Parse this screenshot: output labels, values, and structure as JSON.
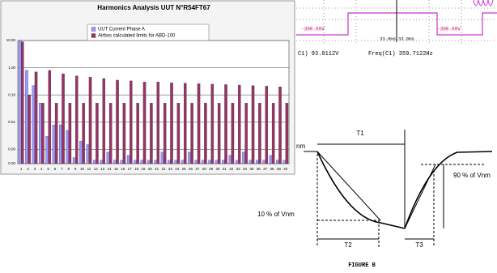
{
  "chart_data": {
    "type": "bar",
    "title": "Harmonics Analysis UUT N°R54FT67",
    "categories": [
      "1",
      "2",
      "3",
      "4",
      "5",
      "6",
      "7",
      "8",
      "9",
      "10",
      "11",
      "12",
      "13",
      "14",
      "15",
      "16",
      "17",
      "18",
      "19",
      "20",
      "21",
      "22",
      "23",
      "24",
      "25",
      "26",
      "27",
      "28",
      "29",
      "30",
      "31",
      "32",
      "33",
      "34",
      "35",
      "36",
      "37",
      "38",
      "39",
      "40"
    ],
    "series": [
      {
        "name": "UUT Current Phase A",
        "color": "#9999ff",
        "values": [
          10,
          0.8,
          0.22,
          0.05,
          0.003,
          0.008,
          0.008,
          0.005,
          0.0005,
          0.002,
          0.0015,
          0.0004,
          0.0004,
          0.0008,
          0.0004,
          0.0004,
          0.0006,
          0.0004,
          0.0004,
          0.0004,
          0.0004,
          0.0008,
          0.0004,
          0.0004,
          0.0004,
          0.0008,
          0.0004,
          0.0004,
          0.0004,
          0.0004,
          0.0004,
          0.0006,
          0.0004,
          0.0008,
          0.0004,
          0.0004,
          0.0004,
          0.0006,
          0.0004,
          0.0004
        ]
      },
      {
        "name": "Airbus calculated limits for ABD-100",
        "color": "#993366",
        "values": [
          9,
          0.1,
          0.7,
          0.05,
          0.8,
          0.05,
          0.6,
          0.05,
          0.5,
          0.05,
          0.45,
          0.05,
          0.4,
          0.05,
          0.35,
          0.05,
          0.33,
          0.05,
          0.3,
          0.05,
          0.3,
          0.05,
          0.28,
          0.05,
          0.27,
          0.05,
          0.26,
          0.05,
          0.25,
          0.05,
          0.24,
          0.05,
          0.23,
          0.05,
          0.22,
          0.05,
          0.21,
          0.05,
          0.2,
          0.05
        ]
      }
    ],
    "ylim": [
      0.0003,
      10
    ],
    "yscale": "log",
    "yticks": [
      {
        "value": 10,
        "label": "10.00"
      },
      {
        "value": 1,
        "label": "1.00"
      },
      {
        "value": 0.1,
        "label": "0.10"
      },
      {
        "value": 0.01,
        "label": "0.01"
      },
      {
        "value": 0.001,
        "label": "0.00"
      },
      {
        "value": 0.0003,
        "label": "0.00"
      }
    ],
    "grid": true,
    "legend": "top"
  },
  "scope": {
    "marker_left": "-300.00V",
    "marker_right": "-300.00V",
    "time_left": "33.0ms",
    "time_right": "33.0ms",
    "voltage": "C1)  93.0112V",
    "frequency": "Freq(C1)  359.7122Hz"
  },
  "figure_b": {
    "t1": "T1",
    "vnm": "nm",
    "ninety": "90 % of Vnm",
    "ten": "10 % of Vnm",
    "t2": "T2",
    "t3": "T3",
    "caption": "FIGURE B"
  }
}
